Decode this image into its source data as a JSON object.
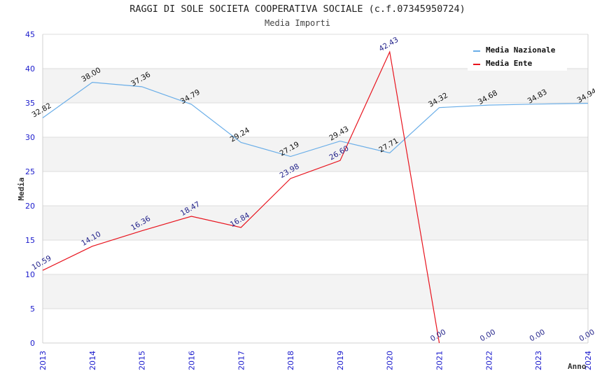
{
  "chart_data": {
    "type": "line",
    "title": "RAGGI DI SOLE SOCIETA COOPERATIVA SOCIALE (c.f.07345950724)",
    "subtitle": "Media Importi",
    "xlabel": "Anno",
    "ylabel": "Media",
    "ylim": [
      0,
      45
    ],
    "yticks": [
      "0",
      "5",
      "10",
      "15",
      "20",
      "25",
      "30",
      "35",
      "40",
      "45"
    ],
    "categories": [
      "2013",
      "2014",
      "2015",
      "2016",
      "2017",
      "2018",
      "2019",
      "2020",
      "2021",
      "2022",
      "2023",
      "2024"
    ],
    "grid": true,
    "legend_position": "top-right",
    "series": [
      {
        "name": "Media Nazionale",
        "color": "#6aaee8",
        "values": [
          32.82,
          38.0,
          37.36,
          34.79,
          29.24,
          27.19,
          29.43,
          27.71,
          34.32,
          34.68,
          34.83,
          34.94
        ],
        "labels": [
          "32.82",
          "38.00",
          "37.36",
          "34.79",
          "29.24",
          "27.19",
          "29.43",
          "27.71",
          "34.32",
          "34.68",
          "34.83",
          "34.94"
        ]
      },
      {
        "name": "Media Ente",
        "color": "#e8141e",
        "values": [
          10.59,
          14.1,
          16.36,
          18.47,
          16.84,
          23.98,
          26.6,
          42.43,
          0.0,
          0.0,
          0.0,
          0.0
        ],
        "labels": [
          "10.59",
          "14.10",
          "16.36",
          "18.47",
          "16.84",
          "23.98",
          "26.60",
          "42.43",
          "0.00",
          "0.00",
          "0.00",
          "0.00"
        ],
        "line_until_index": 8
      }
    ]
  }
}
